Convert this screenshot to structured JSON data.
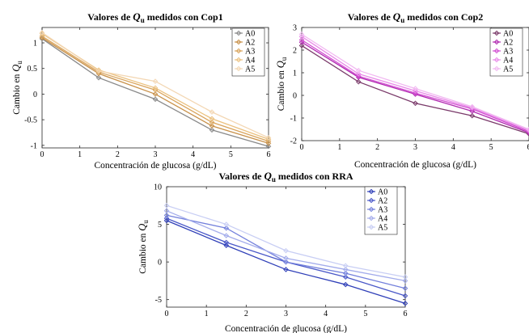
{
  "chart_data": [
    {
      "type": "line",
      "title": "Valores de Q_u medidos con Cop1",
      "title_prefix": "Valores de ",
      "title_symbol": "Q",
      "title_subscript": "u",
      "title_suffix": " medidos con Cop1",
      "xlabel": "Concentración de glucosa (g/dL)",
      "ylabel_prefix": "Cambio en ",
      "ylabel_symbol": "Q",
      "ylabel_subscript": "u",
      "xlim": [
        0,
        6
      ],
      "ylim": [
        -1.05,
        1.3
      ],
      "xticks": [
        0,
        1,
        2,
        3,
        4,
        5,
        6
      ],
      "yticks": [
        -1,
        -0.5,
        0,
        0.5,
        1
      ],
      "ytick_labels": [
        "-1",
        "-0.5",
        "0",
        "0.5",
        "1"
      ],
      "legend_position": "top-right",
      "marker": "diamond",
      "grid": false,
      "x": [
        0,
        1.5,
        3,
        4.5,
        6
      ],
      "series": [
        {
          "name": "A0",
          "values": [
            1.08,
            0.32,
            -0.1,
            -0.7,
            -1.02
          ],
          "color": "#8a8a8a"
        },
        {
          "name": "A2",
          "values": [
            1.1,
            0.4,
            0.0,
            -0.62,
            -0.96
          ],
          "color": "#c8914a"
        },
        {
          "name": "A3",
          "values": [
            1.13,
            0.43,
            0.08,
            -0.55,
            -0.92
          ],
          "color": "#d9a45c"
        },
        {
          "name": "A4",
          "values": [
            1.18,
            0.47,
            0.12,
            -0.48,
            -0.88
          ],
          "color": "#ebc17f"
        },
        {
          "name": "A5",
          "values": [
            1.2,
            0.45,
            0.25,
            -0.35,
            -0.85
          ],
          "color": "#f3d7b3"
        }
      ]
    },
    {
      "type": "line",
      "title": "Valores de Q_u medidos con Cop2",
      "title_prefix": "Valores de ",
      "title_symbol": "Q",
      "title_subscript": "u",
      "title_suffix": " medidos con Cop2",
      "xlabel": "Concentración de glucosa (g/dL)",
      "ylabel_prefix": "Cambio en ",
      "ylabel_symbol": "Q",
      "ylabel_subscript": "u",
      "xlim": [
        0,
        6
      ],
      "ylim": [
        -2,
        3
      ],
      "xticks": [
        0,
        1,
        2,
        3,
        4,
        5,
        6
      ],
      "yticks": [
        -2,
        -1,
        0,
        1,
        2,
        3
      ],
      "ytick_labels": [
        "-2",
        "-1",
        "0",
        "1",
        "2",
        "3"
      ],
      "legend_position": "top-right",
      "marker": "diamond",
      "grid": false,
      "x": [
        0,
        1.5,
        3,
        4.5,
        6
      ],
      "series": [
        {
          "name": "A0",
          "values": [
            2.2,
            0.6,
            -0.35,
            -0.9,
            -1.7
          ],
          "color": "#7a3a6a"
        },
        {
          "name": "A2",
          "values": [
            2.35,
            0.8,
            0.05,
            -0.7,
            -1.65
          ],
          "color": "#b02ab0"
        },
        {
          "name": "A3",
          "values": [
            2.45,
            0.85,
            0.1,
            -0.6,
            -1.6
          ],
          "color": "#d24fd2"
        },
        {
          "name": "A4",
          "values": [
            2.6,
            0.95,
            0.2,
            -0.55,
            -1.55
          ],
          "color": "#e98be9"
        },
        {
          "name": "A5",
          "values": [
            2.7,
            1.1,
            0.3,
            -0.5,
            -1.5
          ],
          "color": "#f1b8f1"
        }
      ]
    },
    {
      "type": "line",
      "title": "Valores de Q_u medidos con RRA",
      "title_prefix": "Valores de ",
      "title_symbol": "Q",
      "title_subscript": "u",
      "title_suffix": " medidos con RRA",
      "xlabel": "Concentración de glucosa (g/dL)",
      "ylabel_prefix": "Cambio en ",
      "ylabel_symbol": "Q",
      "ylabel_subscript": "u",
      "xlim": [
        0,
        6
      ],
      "ylim": [
        -6,
        10
      ],
      "xticks": [
        0,
        1,
        2,
        3,
        4,
        5,
        6
      ],
      "yticks": [
        -5,
        0,
        5,
        10
      ],
      "ytick_labels": [
        "-5",
        "0",
        "5",
        "10"
      ],
      "legend_position": "top-right",
      "marker": "diamond",
      "grid": false,
      "x": [
        0,
        1.5,
        3,
        4.5,
        6
      ],
      "series": [
        {
          "name": "A0",
          "values": [
            5.5,
            2.2,
            -1.0,
            -3.0,
            -5.5
          ],
          "color": "#2f3fb8"
        },
        {
          "name": "A2",
          "values": [
            5.8,
            2.6,
            0.0,
            -2.0,
            -4.5
          ],
          "color": "#4a58c8"
        },
        {
          "name": "A3",
          "values": [
            6.2,
            4.5,
            0.0,
            -1.5,
            -3.5
          ],
          "color": "#7380dc"
        },
        {
          "name": "A4",
          "values": [
            6.8,
            3.5,
            0.5,
            -1.0,
            -2.5
          ],
          "color": "#a3aceb"
        },
        {
          "name": "A5",
          "values": [
            7.5,
            5.0,
            1.5,
            -0.5,
            -2.0
          ],
          "color": "#c8cef4"
        }
      ]
    }
  ]
}
